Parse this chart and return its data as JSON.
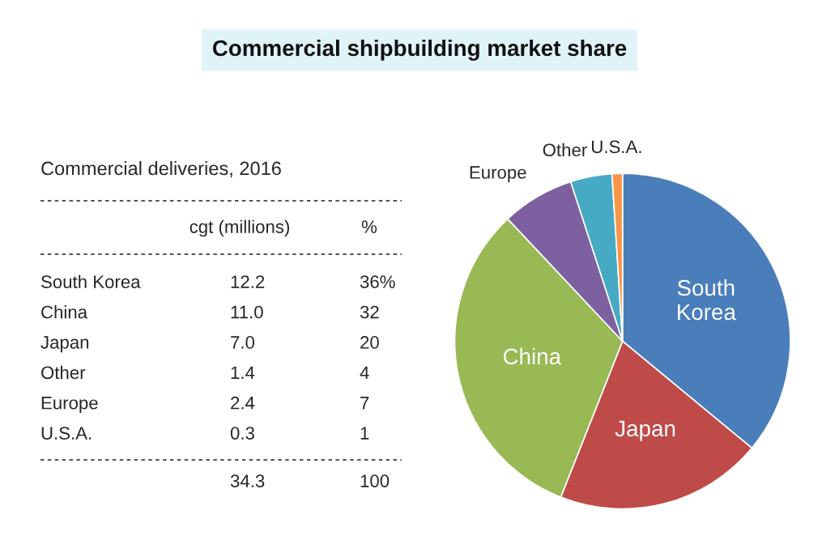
{
  "chart_data": [
    {
      "type": "other",
      "title": "Commercial deliveries, 2016",
      "annotations": [
        "cgt (millions)",
        "%",
        "South Korea",
        "12.2",
        "36%",
        "China",
        "11.0",
        "32",
        "Japan",
        "7.0",
        "20",
        "Other",
        "1.4",
        "4",
        "Europe",
        "2.4",
        "7",
        "U.S.A.",
        "0.3",
        "1",
        "34.3",
        "100"
      ]
    },
    {
      "type": "pie",
      "title": "Commercial shipbuilding market share",
      "categories": [
        "South Korea",
        "Japan",
        "China",
        "Europe",
        "Other",
        "U.S.A."
      ],
      "values": [
        36,
        20,
        32,
        7,
        4,
        1
      ],
      "colors": [
        "#4a7ebb",
        "#be4b48",
        "#98b954",
        "#7d60a0",
        "#46aac5",
        "#f79646"
      ]
    }
  ]
}
